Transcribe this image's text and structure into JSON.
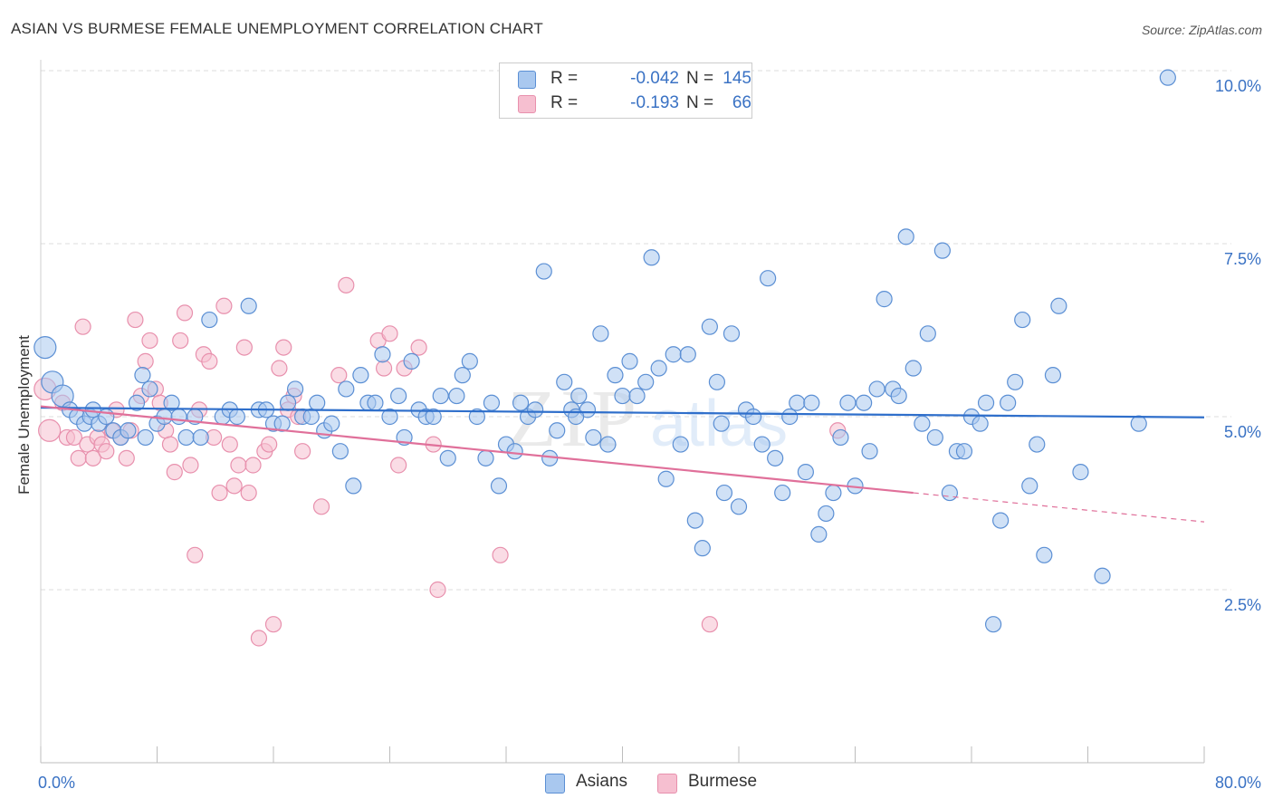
{
  "title": "ASIAN VS BURMESE FEMALE UNEMPLOYMENT CORRELATION CHART",
  "source": "Source: ZipAtlas.com",
  "watermark": "ZIPatlas",
  "colors": {
    "asians_fill": "#a9c8ef",
    "asians_stroke": "#5b8fd4",
    "asians_line": "#2f6fcb",
    "burmese_fill": "#f6bfd0",
    "burmese_stroke": "#e890ad",
    "burmese_line": "#e0709a",
    "axis_text": "#3a72c4",
    "grid": "#dcdcdc"
  },
  "legend": {
    "rows": [
      {
        "series": "Asians",
        "r_label": "R =",
        "r_value": "-0.042",
        "n_label": "N =",
        "n_value": "145"
      },
      {
        "series": "Burmese",
        "r_label": "R =",
        "r_value": "-0.193",
        "n_label": "N =",
        "n_value": "66"
      }
    ]
  },
  "chart_data": {
    "type": "scatter",
    "title": "ASIAN VS BURMESE FEMALE UNEMPLOYMENT CORRELATION CHART",
    "xlabel": "",
    "ylabel": "Female Unemployment",
    "xlim": [
      0,
      80
    ],
    "ylim": [
      0,
      10
    ],
    "x_tick_labels": [
      "0.0%",
      "80.0%"
    ],
    "y_ticks": [
      2.5,
      5.0,
      7.5,
      10.0
    ],
    "y_tick_labels": [
      "2.5%",
      "5.0%",
      "7.5%",
      "10.0%"
    ],
    "grid": true,
    "legend_position": "bottom",
    "series": [
      {
        "name": "Asians",
        "r": -0.042,
        "n": 145,
        "trend": {
          "x": [
            0,
            80
          ],
          "y": [
            5.13,
            4.99
          ]
        },
        "points": [
          [
            0.3,
            6.0,
            1
          ],
          [
            0.8,
            5.5,
            1
          ],
          [
            1.5,
            5.3,
            1
          ],
          [
            2.0,
            5.1,
            0
          ],
          [
            2.5,
            5.0,
            0
          ],
          [
            3.0,
            4.9,
            0
          ],
          [
            3.4,
            5.0,
            0
          ],
          [
            4.0,
            4.9,
            0
          ],
          [
            4.5,
            5.0,
            0
          ],
          [
            5.0,
            4.8,
            0
          ],
          [
            5.5,
            4.7,
            0
          ],
          [
            6.0,
            4.8,
            0
          ],
          [
            6.6,
            5.2,
            0
          ],
          [
            7.0,
            5.6,
            0
          ],
          [
            7.5,
            5.4,
            0
          ],
          [
            8.0,
            4.9,
            0
          ],
          [
            8.5,
            5.0,
            0
          ],
          [
            9.0,
            5.2,
            0
          ],
          [
            9.5,
            5.0,
            0
          ],
          [
            10.0,
            4.7,
            0
          ],
          [
            10.6,
            5.0,
            0
          ],
          [
            11.0,
            4.7,
            0
          ],
          [
            11.6,
            6.4,
            0
          ],
          [
            12.5,
            5.0,
            0
          ],
          [
            13.0,
            5.1,
            0
          ],
          [
            13.5,
            5.0,
            0
          ],
          [
            14.3,
            6.6,
            0
          ],
          [
            15.0,
            5.1,
            0
          ],
          [
            15.5,
            5.1,
            0
          ],
          [
            16.0,
            4.9,
            0
          ],
          [
            16.6,
            4.9,
            0
          ],
          [
            17.5,
            5.4,
            0
          ],
          [
            18.0,
            5.0,
            0
          ],
          [
            18.6,
            5.0,
            0
          ],
          [
            19.0,
            5.2,
            0
          ],
          [
            19.5,
            4.8,
            0
          ],
          [
            20.0,
            4.9,
            0
          ],
          [
            20.6,
            4.5,
            0
          ],
          [
            21.0,
            5.4,
            0
          ],
          [
            21.5,
            4.0,
            0
          ],
          [
            22.0,
            5.6,
            0
          ],
          [
            22.5,
            5.2,
            0
          ],
          [
            23.0,
            5.2,
            0
          ],
          [
            23.5,
            5.9,
            0
          ],
          [
            24.0,
            5.0,
            0
          ],
          [
            24.6,
            5.3,
            0
          ],
          [
            25.0,
            4.7,
            0
          ],
          [
            25.5,
            5.8,
            0
          ],
          [
            26.0,
            5.1,
            0
          ],
          [
            26.5,
            5.0,
            0
          ],
          [
            27.0,
            5.0,
            0
          ],
          [
            27.5,
            5.3,
            0
          ],
          [
            28.0,
            4.4,
            0
          ],
          [
            28.6,
            5.3,
            0
          ],
          [
            29.0,
            5.6,
            0
          ],
          [
            29.5,
            5.8,
            0
          ],
          [
            30.0,
            5.0,
            0
          ],
          [
            30.6,
            4.4,
            0
          ],
          [
            31.0,
            5.2,
            0
          ],
          [
            31.5,
            4.0,
            0
          ],
          [
            32.0,
            4.6,
            0
          ],
          [
            32.6,
            4.5,
            0
          ],
          [
            33.0,
            5.2,
            0
          ],
          [
            33.5,
            5.0,
            0
          ],
          [
            34.0,
            5.1,
            0
          ],
          [
            34.6,
            7.1,
            0
          ],
          [
            35.0,
            4.4,
            0
          ],
          [
            35.5,
            4.8,
            0
          ],
          [
            36.0,
            5.5,
            0
          ],
          [
            36.5,
            5.1,
            0
          ],
          [
            37.0,
            5.3,
            0
          ],
          [
            37.6,
            5.1,
            0
          ],
          [
            38.0,
            4.7,
            0
          ],
          [
            38.5,
            6.2,
            0
          ],
          [
            39.0,
            4.6,
            0
          ],
          [
            39.5,
            5.6,
            0
          ],
          [
            40.0,
            5.3,
            0
          ],
          [
            40.5,
            5.8,
            0
          ],
          [
            41.0,
            5.3,
            0
          ],
          [
            41.6,
            5.5,
            0
          ],
          [
            42.0,
            7.3,
            0
          ],
          [
            42.5,
            5.7,
            0
          ],
          [
            43.0,
            4.1,
            0
          ],
          [
            43.5,
            5.9,
            0
          ],
          [
            44.0,
            4.6,
            0
          ],
          [
            44.5,
            5.9,
            0
          ],
          [
            45.0,
            3.5,
            0
          ],
          [
            45.5,
            3.1,
            0
          ],
          [
            46.0,
            6.3,
            0
          ],
          [
            46.5,
            5.5,
            0
          ],
          [
            47.0,
            3.9,
            0
          ],
          [
            47.5,
            6.2,
            0
          ],
          [
            48.0,
            3.7,
            0
          ],
          [
            48.5,
            5.1,
            0
          ],
          [
            49.0,
            5.0,
            0
          ],
          [
            49.6,
            4.6,
            0
          ],
          [
            50.0,
            7.0,
            0
          ],
          [
            50.5,
            4.4,
            0
          ],
          [
            51.0,
            3.9,
            0
          ],
          [
            51.5,
            5.0,
            0
          ],
          [
            52.0,
            5.2,
            0
          ],
          [
            52.6,
            4.2,
            0
          ],
          [
            53.0,
            5.2,
            0
          ],
          [
            53.5,
            3.3,
            0
          ],
          [
            54.0,
            3.6,
            0
          ],
          [
            54.5,
            3.9,
            0
          ],
          [
            55.0,
            4.7,
            0
          ],
          [
            55.5,
            5.2,
            0
          ],
          [
            56.0,
            4.0,
            0
          ],
          [
            56.6,
            5.2,
            0
          ],
          [
            57.0,
            4.5,
            0
          ],
          [
            57.5,
            5.4,
            0
          ],
          [
            58.0,
            6.7,
            0
          ],
          [
            58.6,
            5.4,
            0
          ],
          [
            59.0,
            5.3,
            0
          ],
          [
            59.5,
            7.6,
            0
          ],
          [
            60.0,
            5.7,
            0
          ],
          [
            60.6,
            4.9,
            0
          ],
          [
            61.0,
            6.2,
            0
          ],
          [
            61.5,
            4.7,
            0
          ],
          [
            62.0,
            7.4,
            0
          ],
          [
            62.5,
            3.9,
            0
          ],
          [
            63.0,
            4.5,
            0
          ],
          [
            63.5,
            4.5,
            0
          ],
          [
            64.0,
            5.0,
            0
          ],
          [
            64.6,
            4.9,
            0
          ],
          [
            65.0,
            5.2,
            0
          ],
          [
            65.5,
            2.0,
            0
          ],
          [
            66.0,
            3.5,
            0
          ],
          [
            66.5,
            5.2,
            0
          ],
          [
            67.0,
            5.5,
            0
          ],
          [
            67.5,
            6.4,
            0
          ],
          [
            68.0,
            4.0,
            0
          ],
          [
            68.5,
            4.6,
            0
          ],
          [
            69.0,
            3.0,
            0
          ],
          [
            69.6,
            5.6,
            0
          ],
          [
            70.0,
            6.6,
            0
          ],
          [
            71.5,
            4.2,
            0
          ],
          [
            73.0,
            2.7,
            0
          ],
          [
            75.5,
            4.9,
            0
          ],
          [
            77.5,
            9.9,
            0
          ],
          [
            3.6,
            5.1,
            0
          ],
          [
            7.2,
            4.7,
            0
          ],
          [
            17.0,
            5.2,
            0
          ],
          [
            36.8,
            5.0,
            0
          ],
          [
            46.8,
            4.9,
            0
          ]
        ]
      },
      {
        "name": "Burmese",
        "r": -0.193,
        "n": 66,
        "trend": {
          "x": [
            0,
            60
          ],
          "y": [
            5.15,
            3.9
          ]
        },
        "trend_extension": {
          "x": [
            60,
            80
          ],
          "y": [
            3.9,
            3.48
          ]
        },
        "points": [
          [
            0.3,
            5.4,
            1
          ],
          [
            0.6,
            4.8,
            1
          ],
          [
            1.5,
            5.2,
            0
          ],
          [
            1.8,
            4.7,
            0
          ],
          [
            2.3,
            4.7,
            0
          ],
          [
            2.6,
            4.4,
            0
          ],
          [
            2.9,
            6.3,
            0
          ],
          [
            3.2,
            4.6,
            0
          ],
          [
            3.6,
            4.4,
            0
          ],
          [
            3.9,
            4.7,
            0
          ],
          [
            4.2,
            4.6,
            0
          ],
          [
            4.5,
            4.5,
            0
          ],
          [
            4.9,
            4.8,
            0
          ],
          [
            5.2,
            5.1,
            0
          ],
          [
            5.5,
            4.7,
            0
          ],
          [
            5.9,
            4.4,
            0
          ],
          [
            6.2,
            4.8,
            0
          ],
          [
            6.5,
            6.4,
            0
          ],
          [
            6.9,
            5.3,
            0
          ],
          [
            7.2,
            5.8,
            0
          ],
          [
            7.5,
            6.1,
            0
          ],
          [
            7.9,
            5.4,
            0
          ],
          [
            8.2,
            5.2,
            0
          ],
          [
            8.6,
            4.8,
            0
          ],
          [
            8.9,
            4.6,
            0
          ],
          [
            9.2,
            4.2,
            0
          ],
          [
            9.6,
            6.1,
            0
          ],
          [
            9.9,
            6.5,
            0
          ],
          [
            10.3,
            4.3,
            0
          ],
          [
            10.6,
            3.0,
            0
          ],
          [
            10.9,
            5.1,
            0
          ],
          [
            11.2,
            5.9,
            0
          ],
          [
            11.6,
            5.8,
            0
          ],
          [
            11.9,
            4.7,
            0
          ],
          [
            12.3,
            3.9,
            0
          ],
          [
            12.6,
            6.6,
            0
          ],
          [
            13.0,
            4.6,
            0
          ],
          [
            13.3,
            4.0,
            0
          ],
          [
            13.6,
            4.3,
            0
          ],
          [
            14.0,
            6.0,
            0
          ],
          [
            14.3,
            3.9,
            0
          ],
          [
            14.6,
            4.3,
            0
          ],
          [
            15.0,
            1.8,
            0
          ],
          [
            15.4,
            4.5,
            0
          ],
          [
            15.7,
            4.6,
            0
          ],
          [
            16.0,
            2.0,
            0
          ],
          [
            16.4,
            5.7,
            0
          ],
          [
            16.7,
            6.0,
            0
          ],
          [
            17.0,
            5.1,
            0
          ],
          [
            17.4,
            5.3,
            0
          ],
          [
            17.7,
            5.0,
            0
          ],
          [
            18.0,
            4.5,
            0
          ],
          [
            19.3,
            3.7,
            0
          ],
          [
            20.5,
            5.6,
            0
          ],
          [
            21.0,
            6.9,
            0
          ],
          [
            23.2,
            6.1,
            0
          ],
          [
            23.6,
            5.7,
            0
          ],
          [
            24.0,
            6.2,
            0
          ],
          [
            24.6,
            4.3,
            0
          ],
          [
            25.0,
            5.7,
            0
          ],
          [
            26.0,
            6.0,
            0
          ],
          [
            27.0,
            4.6,
            0
          ],
          [
            27.3,
            2.5,
            0
          ],
          [
            31.6,
            3.0,
            0
          ],
          [
            46.0,
            2.0,
            0
          ],
          [
            54.8,
            4.8,
            0
          ]
        ]
      }
    ]
  }
}
